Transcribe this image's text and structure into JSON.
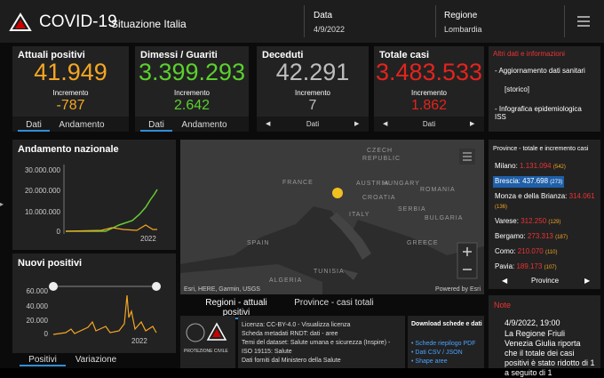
{
  "header": {
    "title": "COVID-19",
    "subtitle": "Situazione Italia",
    "date_label": "Data",
    "date": "4/9/2022",
    "region_label": "Regione",
    "region": "Lombardia"
  },
  "cards": [
    {
      "title": "Attuali positivi",
      "value": "41.949",
      "delta_label": "Incremento",
      "delta": "-787",
      "tabs": [
        "Dati",
        "Andamento"
      ]
    },
    {
      "title": "Dimessi / Guariti",
      "value": "3.399.293",
      "delta_label": "Incremento",
      "delta": "2.642",
      "tabs": [
        "Dati",
        "Andamento"
      ]
    },
    {
      "title": "Deceduti",
      "value": "42.291",
      "delta_label": "Incremento",
      "delta": "7",
      "tabs": [
        "Dati"
      ]
    },
    {
      "title": "Totale casi",
      "value": "3.483.533",
      "delta_label": "Incremento",
      "delta": "1.862",
      "tabs": [
        "Dati"
      ]
    }
  ],
  "info": {
    "title": "Altri dati e informazioni",
    "items": [
      "- Aggiornamento dati sanitari",
      "[storico]",
      "- Infografica epidemiologica ISS"
    ]
  },
  "trend": {
    "title": "Andamento nazionale",
    "yticks": [
      "30.000.000",
      "20.000.000",
      "10.000.000",
      "0"
    ],
    "xlabel": "2022"
  },
  "new_cases": {
    "title": "Nuovi positivi",
    "yticks": [
      "60.000",
      "40.000",
      "20.000",
      "0"
    ],
    "xlabel": "2022",
    "tabs": [
      "Positivi",
      "Variazione"
    ]
  },
  "map": {
    "labels": [
      "CZECH",
      "REPUBLIC",
      "FRANCE",
      "AUSTRIA",
      "HUNGARY",
      "ROMANIA",
      "CROATIA",
      "SERBIA",
      "ITALY",
      "BULGARIA",
      "SPAIN",
      "GREECE",
      "TUNISIA",
      "ALGERIA"
    ],
    "attribution": "Esri, HERE, Garmin, USGS",
    "powered": "Powered by Esri",
    "tabs": [
      "Regioni - attuali positivi",
      "Province - casi totali"
    ]
  },
  "provinces": {
    "title": "Province - totale e incremento casi",
    "rows": [
      [
        "Milano:",
        "1.131.094",
        "(542)"
      ],
      [
        "Brescia:",
        "437.698",
        "(273)"
      ],
      [
        "Monza e della Brianza:",
        "314.061",
        "(136)"
      ],
      [
        "Varese:",
        "312.250",
        "(129)"
      ],
      [
        "Bergamo:",
        "273.313",
        "(187)"
      ],
      [
        "Como:",
        "210.070",
        "(110)"
      ],
      [
        "Pavia:",
        "189.173",
        "(107)"
      ]
    ],
    "footer": "Province"
  },
  "footer": {
    "logo": "PROTEZIONE CIVILE",
    "lines": [
      "Licenza: CC-BY-4.0 - Visualizza licenza",
      "Scheda metadati RNDT: dati - aree",
      "Temi del dataset: Salute umana e sicurezza (Inspire) - ISO 19115: Salute",
      "Dati forniti dal Ministero della Salute"
    ],
    "download_title": "Download schede e dati",
    "downloads": [
      "• Schede riepilogo PDF",
      "• Dati CSV / JSON",
      "• Shape aree"
    ]
  },
  "notes": {
    "title": "Note",
    "date": "4/9/2022, 19:00",
    "text": "La Regione Friuli Venezia Giulia riporta che il totale dei casi positivi è stato ridotto di 1 a seguito di 1"
  }
}
